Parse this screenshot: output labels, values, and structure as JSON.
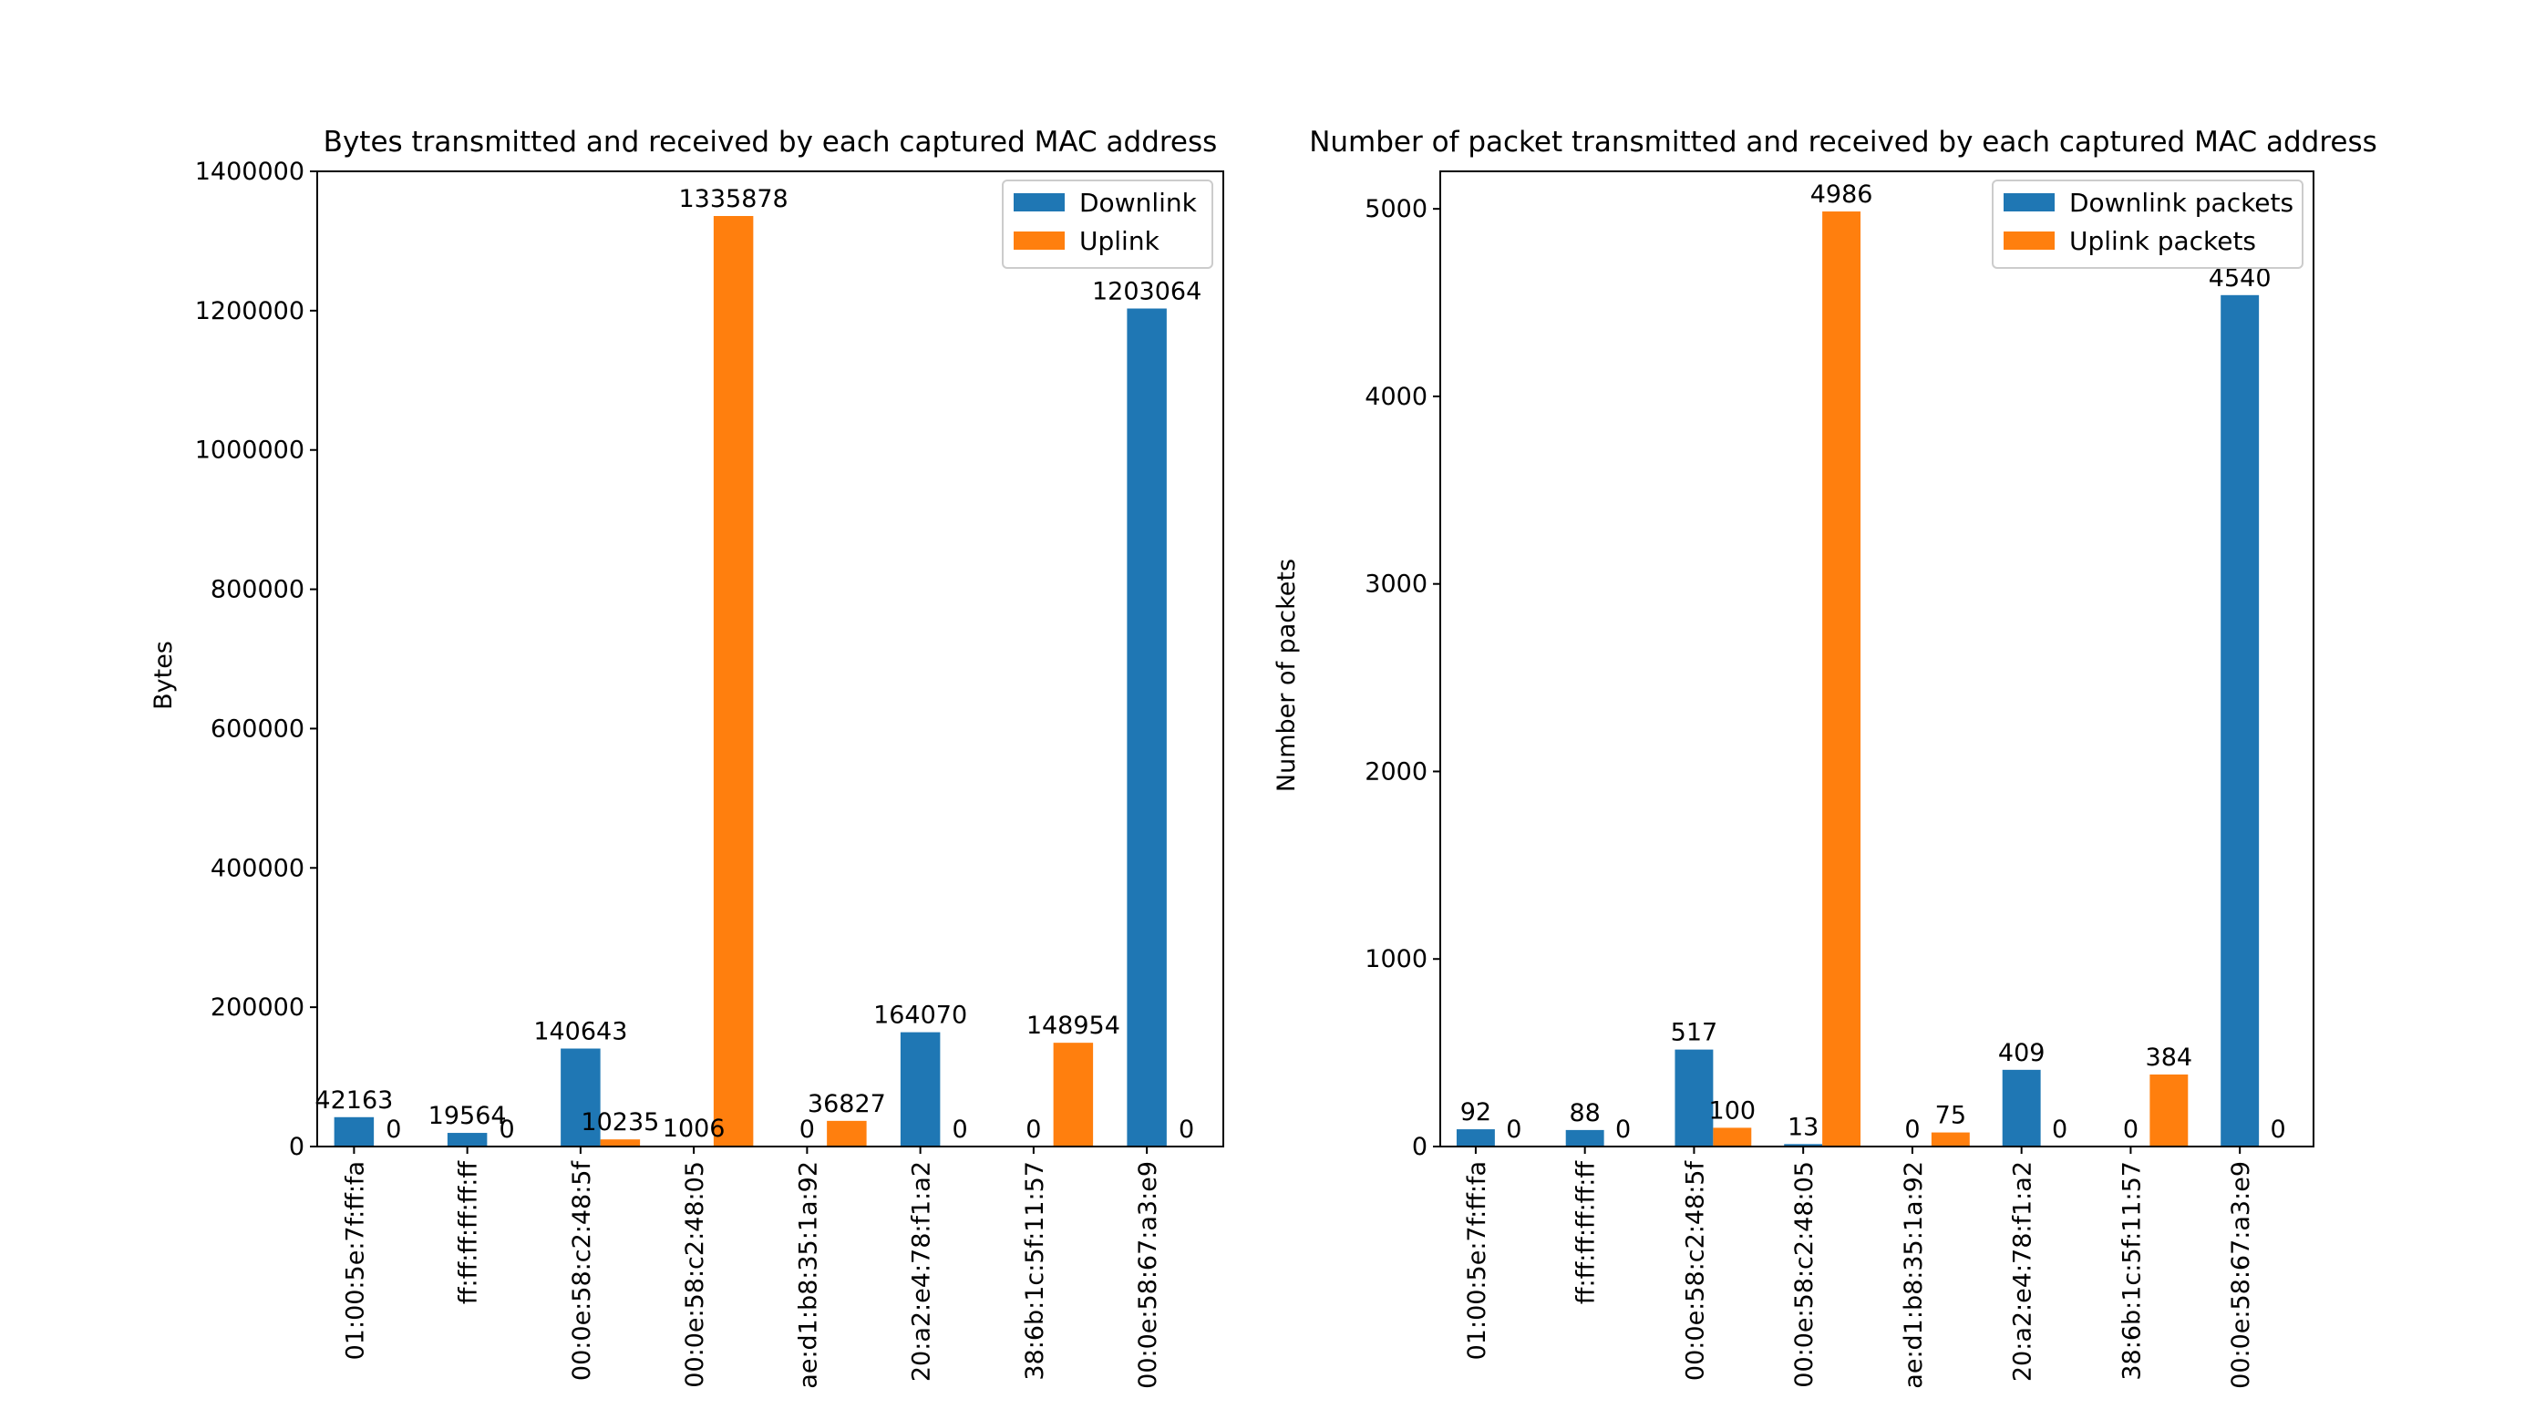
{
  "chart_data": [
    {
      "type": "bar",
      "title": "Bytes transmitted and received by each captured MAC address",
      "xlabel": "",
      "ylabel": "Bytes",
      "ylim": [
        0,
        1400000
      ],
      "yticks": [
        "0",
        "200000",
        "400000",
        "600000",
        "800000",
        "1000000",
        "1200000",
        "1400000"
      ],
      "ytick_values": [
        0,
        200000,
        400000,
        600000,
        800000,
        1000000,
        1200000,
        1400000
      ],
      "categories": [
        "01:00:5e:7f:ff:fa",
        "ff:ff:ff:ff:ff:ff",
        "00:0e:58:c2:48:5f",
        "00:0e:58:c2:48:05",
        "ae:d1:b8:35:1a:92",
        "20:a2:e4:78:f1:a2",
        "38:6b:1c:5f:11:57",
        "00:0e:58:67:a3:e9"
      ],
      "series": [
        {
          "name": "Downlink",
          "color": "#1f77b4",
          "values": [
            42163,
            19564,
            140643,
            1006,
            0,
            164070,
            0,
            1203064
          ]
        },
        {
          "name": "Uplink",
          "color": "#ff7f0e",
          "values": [
            0,
            0,
            10235,
            1335878,
            36827,
            0,
            148954,
            0
          ]
        }
      ],
      "grid": false,
      "legend": "top-right"
    },
    {
      "type": "bar",
      "title": "Number of packet transmitted and received by each captured MAC address",
      "xlabel": "",
      "ylabel": "Number of packets",
      "ylim": [
        0,
        5200
      ],
      "yticks": [
        "0",
        "1000",
        "2000",
        "3000",
        "4000",
        "5000"
      ],
      "ytick_values": [
        0,
        1000,
        2000,
        3000,
        4000,
        5000
      ],
      "categories": [
        "01:00:5e:7f:ff:fa",
        "ff:ff:ff:ff:ff:ff",
        "00:0e:58:c2:48:5f",
        "00:0e:58:c2:48:05",
        "ae:d1:b8:35:1a:92",
        "20:a2:e4:78:f1:a2",
        "38:6b:1c:5f:11:57",
        "00:0e:58:67:a3:e9"
      ],
      "series": [
        {
          "name": "Downlink packets",
          "color": "#1f77b4",
          "values": [
            92,
            88,
            517,
            13,
            0,
            409,
            0,
            4540
          ]
        },
        {
          "name": "Uplink packets",
          "color": "#ff7f0e",
          "values": [
            0,
            0,
            100,
            4986,
            75,
            0,
            384,
            0
          ]
        }
      ],
      "grid": false,
      "legend": "top-right"
    }
  ]
}
